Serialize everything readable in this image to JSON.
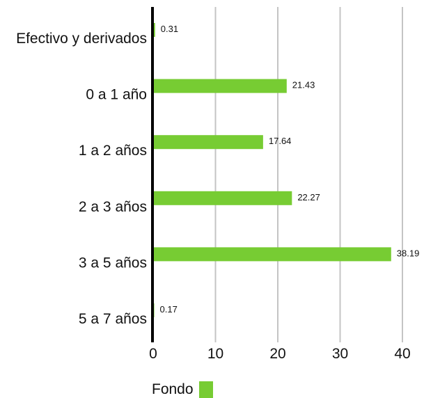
{
  "chart_data": {
    "type": "bar",
    "orientation": "horizontal",
    "categories": [
      "Efectivo y derivados",
      "0 a 1 año",
      "1 a 2 años",
      "2 a 3 años",
      "3 a 5 años",
      "5 a 7 años"
    ],
    "series": [
      {
        "name": "Fondo",
        "values": [
          0.31,
          21.43,
          17.64,
          22.27,
          38.19,
          0.17
        ],
        "color": "#77cc33"
      }
    ],
    "data_labels": [
      "0.31",
      "21.43",
      "17.64",
      "22.27",
      "38.19",
      "0.17"
    ],
    "xlim": [
      0,
      40
    ],
    "x_ticks": [
      0,
      10,
      20,
      30,
      40
    ],
    "grid": "vertical",
    "legend_position": "bottom-left",
    "title": "",
    "xlabel": "",
    "ylabel": ""
  },
  "legend": {
    "label": "Fondo"
  }
}
